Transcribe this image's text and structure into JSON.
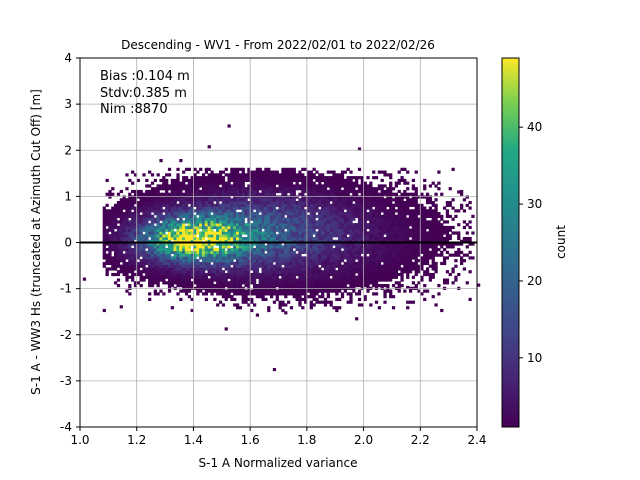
{
  "chart_data": {
    "type": "heatmap",
    "title": "Descending - WV1 - From 2022/02/01 to 2022/02/26",
    "xlabel": "S-1 A Normalized variance",
    "ylabel": "S-1 A - WW3 Hs (truncated at Azimuth Cut Off) [m]",
    "xlim": [
      1.0,
      2.4
    ],
    "ylim": [
      -4,
      4
    ],
    "x_ticks": [
      "1.0",
      "1.2",
      "1.4",
      "1.6",
      "1.8",
      "2.0",
      "2.2",
      "2.4"
    ],
    "y_ticks": [
      "-4",
      "-3",
      "-2",
      "-1",
      "0",
      "1",
      "2",
      "3",
      "4"
    ],
    "grid": true,
    "reference_line_y": 0,
    "annotations": [
      "Bias :0.104 m",
      "Stdv:0.385 m",
      "Nim :8870"
    ],
    "colorbar": {
      "label": "count",
      "range": [
        1,
        49
      ],
      "ticks": [
        "10",
        "20",
        "30",
        "40"
      ],
      "colormap": "viridis"
    },
    "density_clusters": [
      {
        "x_center": 1.4,
        "y_center": 0.05,
        "x_spread": 0.12,
        "y_spread": 0.3,
        "peak_count": 49
      },
      {
        "x_center": 1.6,
        "y_center": 0.2,
        "x_spread": 0.2,
        "y_spread": 0.5,
        "peak_count": 15
      },
      {
        "x_center": 1.8,
        "y_center": 0.1,
        "x_spread": 0.25,
        "y_spread": 0.6,
        "peak_count": 4
      }
    ],
    "outlier_points": [
      [
        1.52,
        2.5
      ],
      [
        1.35,
        1.75
      ],
      [
        1.45,
        2.05
      ],
      [
        1.98,
        2.0
      ],
      [
        1.68,
        -2.78
      ],
      [
        1.51,
        -1.9
      ],
      [
        1.14,
        -1.42
      ],
      [
        1.01,
        -0.82
      ],
      [
        2.33,
        1.07
      ],
      [
        2.3,
        0.3
      ],
      [
        2.4,
        -0.95
      ],
      [
        1.97,
        -1.68
      ],
      [
        2.15,
        -1.0
      ],
      [
        2.25,
        -0.55
      ],
      [
        2.2,
        0.75
      ],
      [
        1.72,
        -1.55
      ],
      [
        1.62,
        -1.6
      ],
      [
        1.28,
        1.75
      ],
      [
        1.12,
        -0.9
      ],
      [
        2.35,
        -0.6
      ]
    ]
  }
}
